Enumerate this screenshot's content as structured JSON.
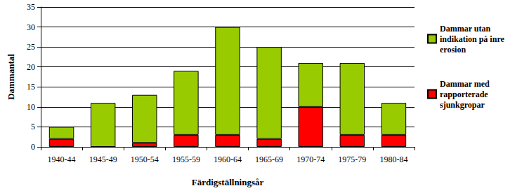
{
  "chart_data": {
    "type": "bar",
    "x_label": "Färdigställningsår",
    "y_label": "Dammantal",
    "categories": [
      "1940-44",
      "1945-49",
      "1950-54",
      "1955-59",
      "1960-64",
      "1965-69",
      "1970-74",
      "1975-79",
      "1980-84"
    ],
    "series": [
      {
        "name": "Dammar med rapporterade sjunkgropar",
        "color": "#ff0000",
        "values": [
          2,
          0,
          1,
          3,
          3,
          2,
          10,
          3,
          3
        ]
      },
      {
        "name": "Dammar utan indikation på inre erosion",
        "color": "#99cc00",
        "values": [
          3,
          11,
          12,
          16,
          27,
          23,
          11,
          18,
          8
        ]
      }
    ],
    "stacked": true,
    "ylim": [
      0,
      35
    ],
    "yticks": [
      0,
      5,
      10,
      15,
      20,
      25,
      30,
      35
    ],
    "grid": true,
    "legend": "right"
  }
}
